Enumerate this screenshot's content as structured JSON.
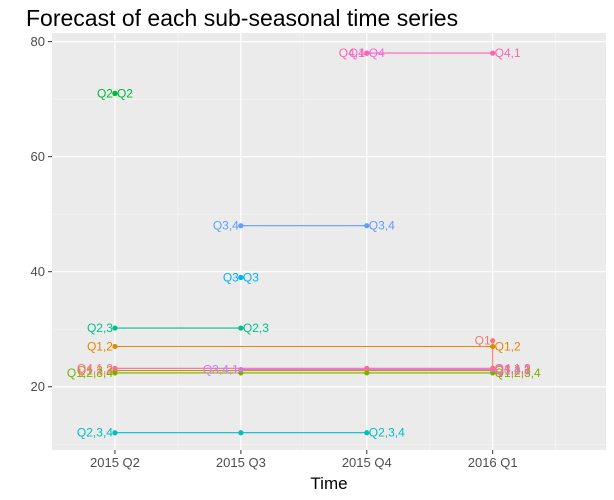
{
  "chart_data": {
    "type": "line",
    "title": "Forecast of each sub-seasonal time series",
    "xlabel": "Time",
    "ylabel": "",
    "x_ticks": [
      "2015 Q2",
      "2015 Q3",
      "2015 Q4",
      "2016 Q1"
    ],
    "x_lim": [
      0.5,
      4.9
    ],
    "y_ticks": [
      20,
      40,
      60,
      80
    ],
    "y_lim": [
      9,
      81.5
    ],
    "grid": true,
    "legend": "none",
    "series": [
      {
        "color": "#F8766D",
        "points": [
          {
            "x": 4,
            "y": 28,
            "label": "Q1"
          },
          {
            "x": 4,
            "y": 23.2,
            "label": "Q4,1,2"
          }
        ]
      },
      {
        "color": "#E58700",
        "points": [
          {
            "x": 1,
            "y": 27,
            "label": "Q1,2"
          },
          {
            "x": 4,
            "y": 27,
            "label": "Q1,2"
          }
        ]
      },
      {
        "color": "#C99800",
        "points": [
          {
            "x": 1,
            "y": 22.8,
            "label": "Q1,2,3"
          },
          {
            "x": 4,
            "y": 22.8,
            "label": "Q1,2,3"
          }
        ]
      },
      {
        "color": "#7CAE00",
        "points": [
          {
            "x": 1,
            "y": 22.4,
            "label": "Q1,2,3,4"
          },
          {
            "x": 2,
            "y": 22.4,
            "label": ""
          },
          {
            "x": 3,
            "y": 22.4,
            "label": ""
          },
          {
            "x": 4,
            "y": 22.4,
            "label": "Q1,2,3,4"
          }
        ]
      },
      {
        "color": "#00BA38",
        "points": [
          {
            "x": 1,
            "y": 71,
            "label": "Q2"
          },
          {
            "x": 1,
            "y": 71,
            "label": "Q2"
          }
        ]
      },
      {
        "color": "#00C08B",
        "points": [
          {
            "x": 1,
            "y": 30.2,
            "label": "Q2,3"
          },
          {
            "x": 2,
            "y": 30.2,
            "label": "Q2,3"
          }
        ]
      },
      {
        "color": "#00BFC4",
        "points": [
          {
            "x": 1,
            "y": 12,
            "label": "Q2,3,4"
          },
          {
            "x": 2,
            "y": 12,
            "label": ""
          },
          {
            "x": 3,
            "y": 12,
            "label": "Q2,3,4"
          }
        ]
      },
      {
        "color": "#00B4F0",
        "points": [
          {
            "x": 2,
            "y": 39,
            "label": "Q3"
          },
          {
            "x": 2,
            "y": 39,
            "label": "Q3"
          }
        ]
      },
      {
        "color": "#619CFF",
        "points": [
          {
            "x": 2,
            "y": 48,
            "label": "Q3,4"
          },
          {
            "x": 3,
            "y": 48,
            "label": "Q3,4"
          }
        ]
      },
      {
        "color": "#C77CFF",
        "points": [
          {
            "x": 2,
            "y": 23,
            "label": "Q3,4,1"
          },
          {
            "x": 4,
            "y": 23,
            "label": "Q3,4,1"
          }
        ]
      },
      {
        "color": "#F564E3",
        "points": [
          {
            "x": 3,
            "y": 78,
            "label": "Q4"
          },
          {
            "x": 3,
            "y": 78,
            "label": "Q4"
          }
        ]
      },
      {
        "color": "#FF64B0",
        "points": [
          {
            "x": 3,
            "y": 78,
            "label": "Q4,1"
          },
          {
            "x": 4,
            "y": 78,
            "label": "Q4,1"
          }
        ]
      },
      {
        "color": "#FF6C91",
        "points": [
          {
            "x": 1,
            "y": 23.2,
            "label": "Q4,1,2"
          },
          {
            "x": 3,
            "y": 23.2,
            "label": ""
          },
          {
            "x": 4,
            "y": 23.2,
            "label": "Q4,1,2"
          }
        ]
      }
    ]
  }
}
